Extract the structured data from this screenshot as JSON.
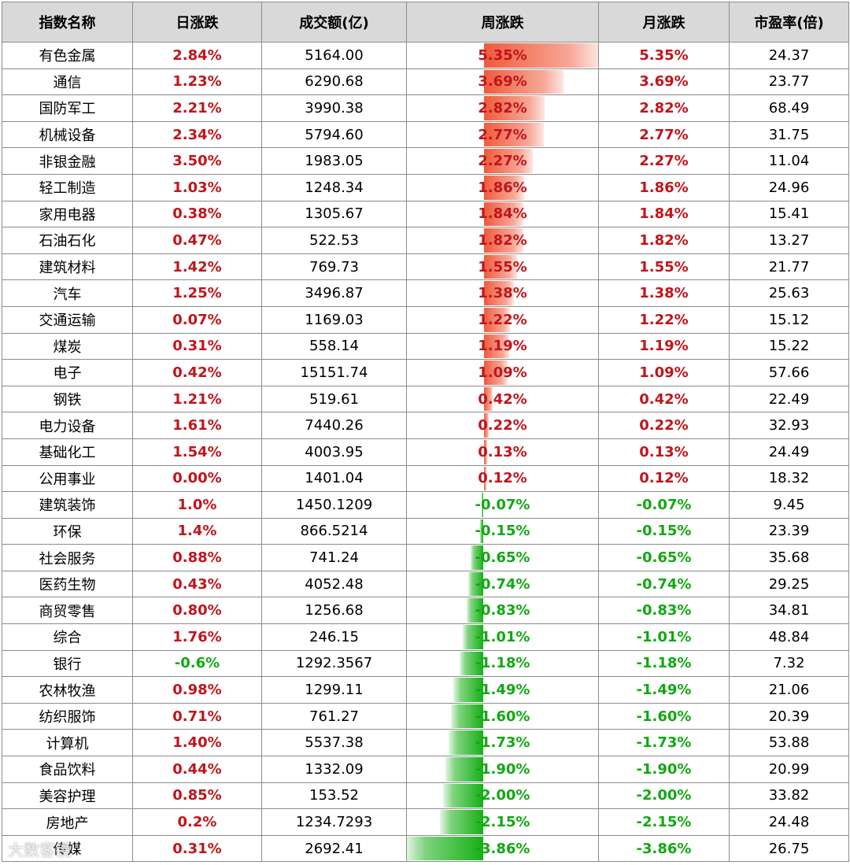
{
  "headers": [
    "指数名称",
    "日涨跌",
    "成交额(亿)",
    "周涨跌",
    "月涨跌",
    "市盈率(倍)"
  ],
  "colors": {
    "positive": "#c0151b",
    "negative": "#12a812",
    "header_bg": "#d9d9d9"
  },
  "rows": [
    {
      "name": "有色金属",
      "day": "2.84%",
      "turnover": "5164.00",
      "week": "5.35%",
      "month": "5.35%",
      "pe": "24.37"
    },
    {
      "name": "通信",
      "day": "1.23%",
      "turnover": "6290.68",
      "week": "3.69%",
      "month": "3.69%",
      "pe": "23.77"
    },
    {
      "name": "国防军工",
      "day": "2.21%",
      "turnover": "3990.38",
      "week": "2.82%",
      "month": "2.82%",
      "pe": "68.49"
    },
    {
      "name": "机械设备",
      "day": "2.34%",
      "turnover": "5794.60",
      "week": "2.77%",
      "month": "2.77%",
      "pe": "31.75"
    },
    {
      "name": "非银金融",
      "day": "3.50%",
      "turnover": "1983.05",
      "week": "2.27%",
      "month": "2.27%",
      "pe": "11.04"
    },
    {
      "name": "轻工制造",
      "day": "1.03%",
      "turnover": "1248.34",
      "week": "1.86%",
      "month": "1.86%",
      "pe": "24.96"
    },
    {
      "name": "家用电器",
      "day": "0.38%",
      "turnover": "1305.67",
      "week": "1.84%",
      "month": "1.84%",
      "pe": "15.41"
    },
    {
      "name": "石油石化",
      "day": "0.47%",
      "turnover": "522.53",
      "week": "1.82%",
      "month": "1.82%",
      "pe": "13.27"
    },
    {
      "name": "建筑材料",
      "day": "1.42%",
      "turnover": "769.73",
      "week": "1.55%",
      "month": "1.55%",
      "pe": "21.77"
    },
    {
      "name": "汽车",
      "day": "1.25%",
      "turnover": "3496.87",
      "week": "1.38%",
      "month": "1.38%",
      "pe": "25.63"
    },
    {
      "name": "交通运输",
      "day": "0.07%",
      "turnover": "1169.03",
      "week": "1.22%",
      "month": "1.22%",
      "pe": "15.12"
    },
    {
      "name": "煤炭",
      "day": "0.31%",
      "turnover": "558.14",
      "week": "1.19%",
      "month": "1.19%",
      "pe": "15.22"
    },
    {
      "name": "电子",
      "day": "0.42%",
      "turnover": "15151.74",
      "week": "1.09%",
      "month": "1.09%",
      "pe": "57.66"
    },
    {
      "name": "钢铁",
      "day": "1.21%",
      "turnover": "519.61",
      "week": "0.42%",
      "month": "0.42%",
      "pe": "22.49"
    },
    {
      "name": "电力设备",
      "day": "1.61%",
      "turnover": "7440.26",
      "week": "0.22%",
      "month": "0.22%",
      "pe": "32.93"
    },
    {
      "name": "基础化工",
      "day": "1.54%",
      "turnover": "4003.95",
      "week": "0.13%",
      "month": "0.13%",
      "pe": "24.49"
    },
    {
      "name": "公用事业",
      "day": "0.00%",
      "turnover": "1401.04",
      "week": "0.12%",
      "month": "0.12%",
      "pe": "18.32"
    },
    {
      "name": "建筑装饰",
      "day": "1.0%",
      "turnover": "1450.1209",
      "week": "-0.07%",
      "month": "-0.07%",
      "pe": "9.45"
    },
    {
      "name": "环保",
      "day": "1.4%",
      "turnover": "866.5214",
      "week": "-0.15%",
      "month": "-0.15%",
      "pe": "23.39"
    },
    {
      "name": "社会服务",
      "day": "0.88%",
      "turnover": "741.24",
      "week": "-0.65%",
      "month": "-0.65%",
      "pe": "35.68"
    },
    {
      "name": "医药生物",
      "day": "0.43%",
      "turnover": "4052.48",
      "week": "-0.74%",
      "month": "-0.74%",
      "pe": "29.25"
    },
    {
      "name": "商贸零售",
      "day": "0.80%",
      "turnover": "1256.68",
      "week": "-0.83%",
      "month": "-0.83%",
      "pe": "34.81"
    },
    {
      "name": "综合",
      "day": "1.76%",
      "turnover": "246.15",
      "week": "-1.01%",
      "month": "-1.01%",
      "pe": "48.84"
    },
    {
      "name": "银行",
      "day": "-0.6%",
      "turnover": "1292.3567",
      "week": "-1.18%",
      "month": "-1.18%",
      "pe": "7.32"
    },
    {
      "name": "农林牧渔",
      "day": "0.98%",
      "turnover": "1299.11",
      "week": "-1.49%",
      "month": "-1.49%",
      "pe": "21.06"
    },
    {
      "name": "纺织服饰",
      "day": "0.71%",
      "turnover": "761.27",
      "week": "-1.60%",
      "month": "-1.60%",
      "pe": "20.39"
    },
    {
      "name": "计算机",
      "day": "1.40%",
      "turnover": "5537.38",
      "week": "-1.73%",
      "month": "-1.73%",
      "pe": "53.88"
    },
    {
      "name": "食品饮料",
      "day": "0.44%",
      "turnover": "1332.09",
      "week": "-1.90%",
      "month": "-1.90%",
      "pe": "20.99"
    },
    {
      "name": "美容护理",
      "day": "0.85%",
      "turnover": "153.52",
      "week": "-2.00%",
      "month": "-2.00%",
      "pe": "33.82"
    },
    {
      "name": "房地产",
      "day": "0.2%",
      "turnover": "1234.7293",
      "week": "-2.15%",
      "month": "-2.15%",
      "pe": "24.48"
    },
    {
      "name": "传媒",
      "day": "0.31%",
      "turnover": "2692.41",
      "week": "-3.86%",
      "month": "-3.86%",
      "pe": "26.75"
    }
  ],
  "watermark": "大数客镜"
}
